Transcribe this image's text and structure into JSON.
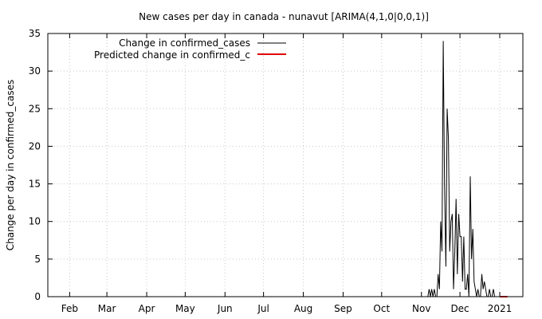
{
  "chart_data": {
    "type": "line",
    "title": "New cases per day in canada - nunavut [ARIMA(4,1,0|0,0,1)]",
    "xlabel": "",
    "ylabel": "Change per day in confirmed_cases",
    "x_tick_labels": [
      "Feb",
      "Mar",
      "Apr",
      "May",
      "Jun",
      "Jul",
      "Aug",
      "Sep",
      "Oct",
      "Nov",
      "Dec",
      "2021"
    ],
    "x_tick_dates": [
      "2020-02-01",
      "2020-03-01",
      "2020-04-01",
      "2020-05-01",
      "2020-06-01",
      "2020-07-01",
      "2020-08-01",
      "2020-09-01",
      "2020-10-01",
      "2020-11-01",
      "2020-12-01",
      "2021-01-01"
    ],
    "xlim": [
      "2020-01-15",
      "2021-01-19"
    ],
    "y_ticks": [
      0,
      5,
      10,
      15,
      20,
      25,
      30,
      35
    ],
    "ylim": [
      0,
      35
    ],
    "grid": true,
    "legend_position": "top-left",
    "series": [
      {
        "name": "Change in confirmed_cases",
        "color": "#000000",
        "points": [
          [
            "2020-11-01",
            0
          ],
          [
            "2020-11-06",
            0
          ],
          [
            "2020-11-07",
            1
          ],
          [
            "2020-11-08",
            0
          ],
          [
            "2020-11-09",
            1
          ],
          [
            "2020-11-10",
            0
          ],
          [
            "2020-11-11",
            1
          ],
          [
            "2020-11-12",
            0
          ],
          [
            "2020-11-13",
            0
          ],
          [
            "2020-11-14",
            3
          ],
          [
            "2020-11-15",
            1
          ],
          [
            "2020-11-16",
            10
          ],
          [
            "2020-11-17",
            6
          ],
          [
            "2020-11-18",
            34
          ],
          [
            "2020-11-19",
            15
          ],
          [
            "2020-11-20",
            4
          ],
          [
            "2020-11-21",
            25
          ],
          [
            "2020-11-22",
            21
          ],
          [
            "2020-11-23",
            6
          ],
          [
            "2020-11-24",
            10
          ],
          [
            "2020-11-25",
            11
          ],
          [
            "2020-11-26",
            1
          ],
          [
            "2020-11-27",
            6
          ],
          [
            "2020-11-28",
            13
          ],
          [
            "2020-11-29",
            3
          ],
          [
            "2020-11-30",
            11
          ],
          [
            "2020-12-01",
            8
          ],
          [
            "2020-12-02",
            8
          ],
          [
            "2020-12-03",
            2
          ],
          [
            "2020-12-04",
            8
          ],
          [
            "2020-12-05",
            1
          ],
          [
            "2020-12-06",
            1
          ],
          [
            "2020-12-07",
            3
          ],
          [
            "2020-12-08",
            0
          ],
          [
            "2020-12-09",
            16
          ],
          [
            "2020-12-10",
            5
          ],
          [
            "2020-12-11",
            9
          ],
          [
            "2020-12-12",
            2
          ],
          [
            "2020-12-13",
            1
          ],
          [
            "2020-12-14",
            0
          ],
          [
            "2020-12-15",
            1
          ],
          [
            "2020-12-16",
            0
          ],
          [
            "2020-12-17",
            0
          ],
          [
            "2020-12-18",
            3
          ],
          [
            "2020-12-19",
            1
          ],
          [
            "2020-12-20",
            2
          ],
          [
            "2020-12-21",
            1
          ],
          [
            "2020-12-22",
            0
          ],
          [
            "2020-12-23",
            0
          ],
          [
            "2020-12-24",
            1
          ],
          [
            "2020-12-25",
            0
          ],
          [
            "2020-12-26",
            0
          ],
          [
            "2020-12-27",
            1
          ],
          [
            "2020-12-28",
            0
          ]
        ]
      },
      {
        "name": "Predicted change in confirmed_c",
        "color": "#e00000",
        "points": [
          [
            "2021-01-01",
            0
          ],
          [
            "2021-01-07",
            0
          ]
        ]
      }
    ]
  }
}
